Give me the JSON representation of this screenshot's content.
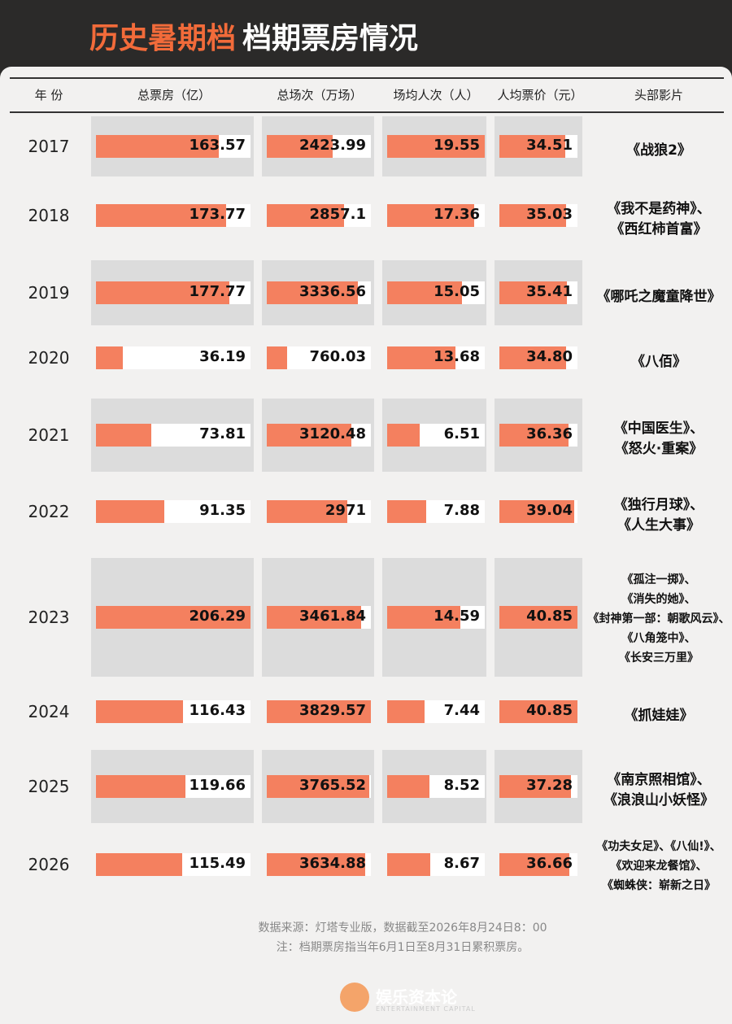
{
  "header": {
    "title_highlight": "历史暑期档",
    "title_rest": "档期票房情况"
  },
  "table": {
    "columns": [
      "年 份",
      "总票房（亿）",
      "总场次（万场）",
      "场均人次（人）",
      "人均票价（元）",
      "头部影片"
    ],
    "rows": [
      {
        "year": "2017",
        "values": [
          163.57,
          2423.99,
          19.55,
          34.51
        ],
        "films": [
          "《战狼2》"
        ]
      },
      {
        "year": "2018",
        "values": [
          173.77,
          2857.1,
          17.36,
          35.03
        ],
        "films": [
          "《我不是药神》、",
          "《西红柿首富》"
        ]
      },
      {
        "year": "2019",
        "values": [
          177.77,
          3336.56,
          15.05,
          35.41
        ],
        "films": [
          "《哪吒之魔童降世》"
        ]
      },
      {
        "year": "2020",
        "values": [
          36.19,
          760.03,
          13.68,
          {
            "value": 34.8,
            "label": "34.80"
          }
        ],
        "films": [
          "《八佰》"
        ]
      },
      {
        "year": "2021",
        "values": [
          73.81,
          3120.48,
          6.51,
          36.36
        ],
        "films": [
          "《中国医生》、",
          "《怒火·重案》"
        ]
      },
      {
        "year": "2022",
        "values": [
          91.35,
          2971,
          7.88,
          39.04
        ],
        "films": [
          "《独行月球》、",
          "《人生大事》"
        ]
      },
      {
        "year": "2023",
        "values": [
          206.29,
          3461.84,
          14.59,
          40.85
        ],
        "films": [
          "《孤注一掷》、",
          "《消失的她》、",
          "《封神第一部：朝歌风云》、",
          "《八角笼中》、",
          "《长安三万里》"
        ]
      },
      {
        "year": "2024",
        "values": [
          116.43,
          3829.57,
          7.44,
          40.85
        ],
        "films": [
          "《抓娃娃》"
        ]
      },
      {
        "year": "2025",
        "values": [
          119.66,
          3765.52,
          8.52,
          37.28
        ],
        "films": [
          "《南京照相馆》、",
          "《浪浪山小妖怪》"
        ]
      },
      {
        "year": "2026",
        "values": [
          115.49,
          3634.88,
          8.67,
          36.66
        ],
        "films": [
          "《功夫女足》、《八仙!》、",
          "《欢迎来龙餐馆》、",
          "《蜘蛛侠：崭新之日》"
        ]
      }
    ]
  },
  "footer": {
    "source": "数据来源：灯塔专业版，数据截至2026年8月24日8：00",
    "note": "注：档期票房指当年6月1日至8月31日累积票房。",
    "brand": "娱乐资本论",
    "brand_en": "ENTERTAINMENT CAPITAL"
  }
}
